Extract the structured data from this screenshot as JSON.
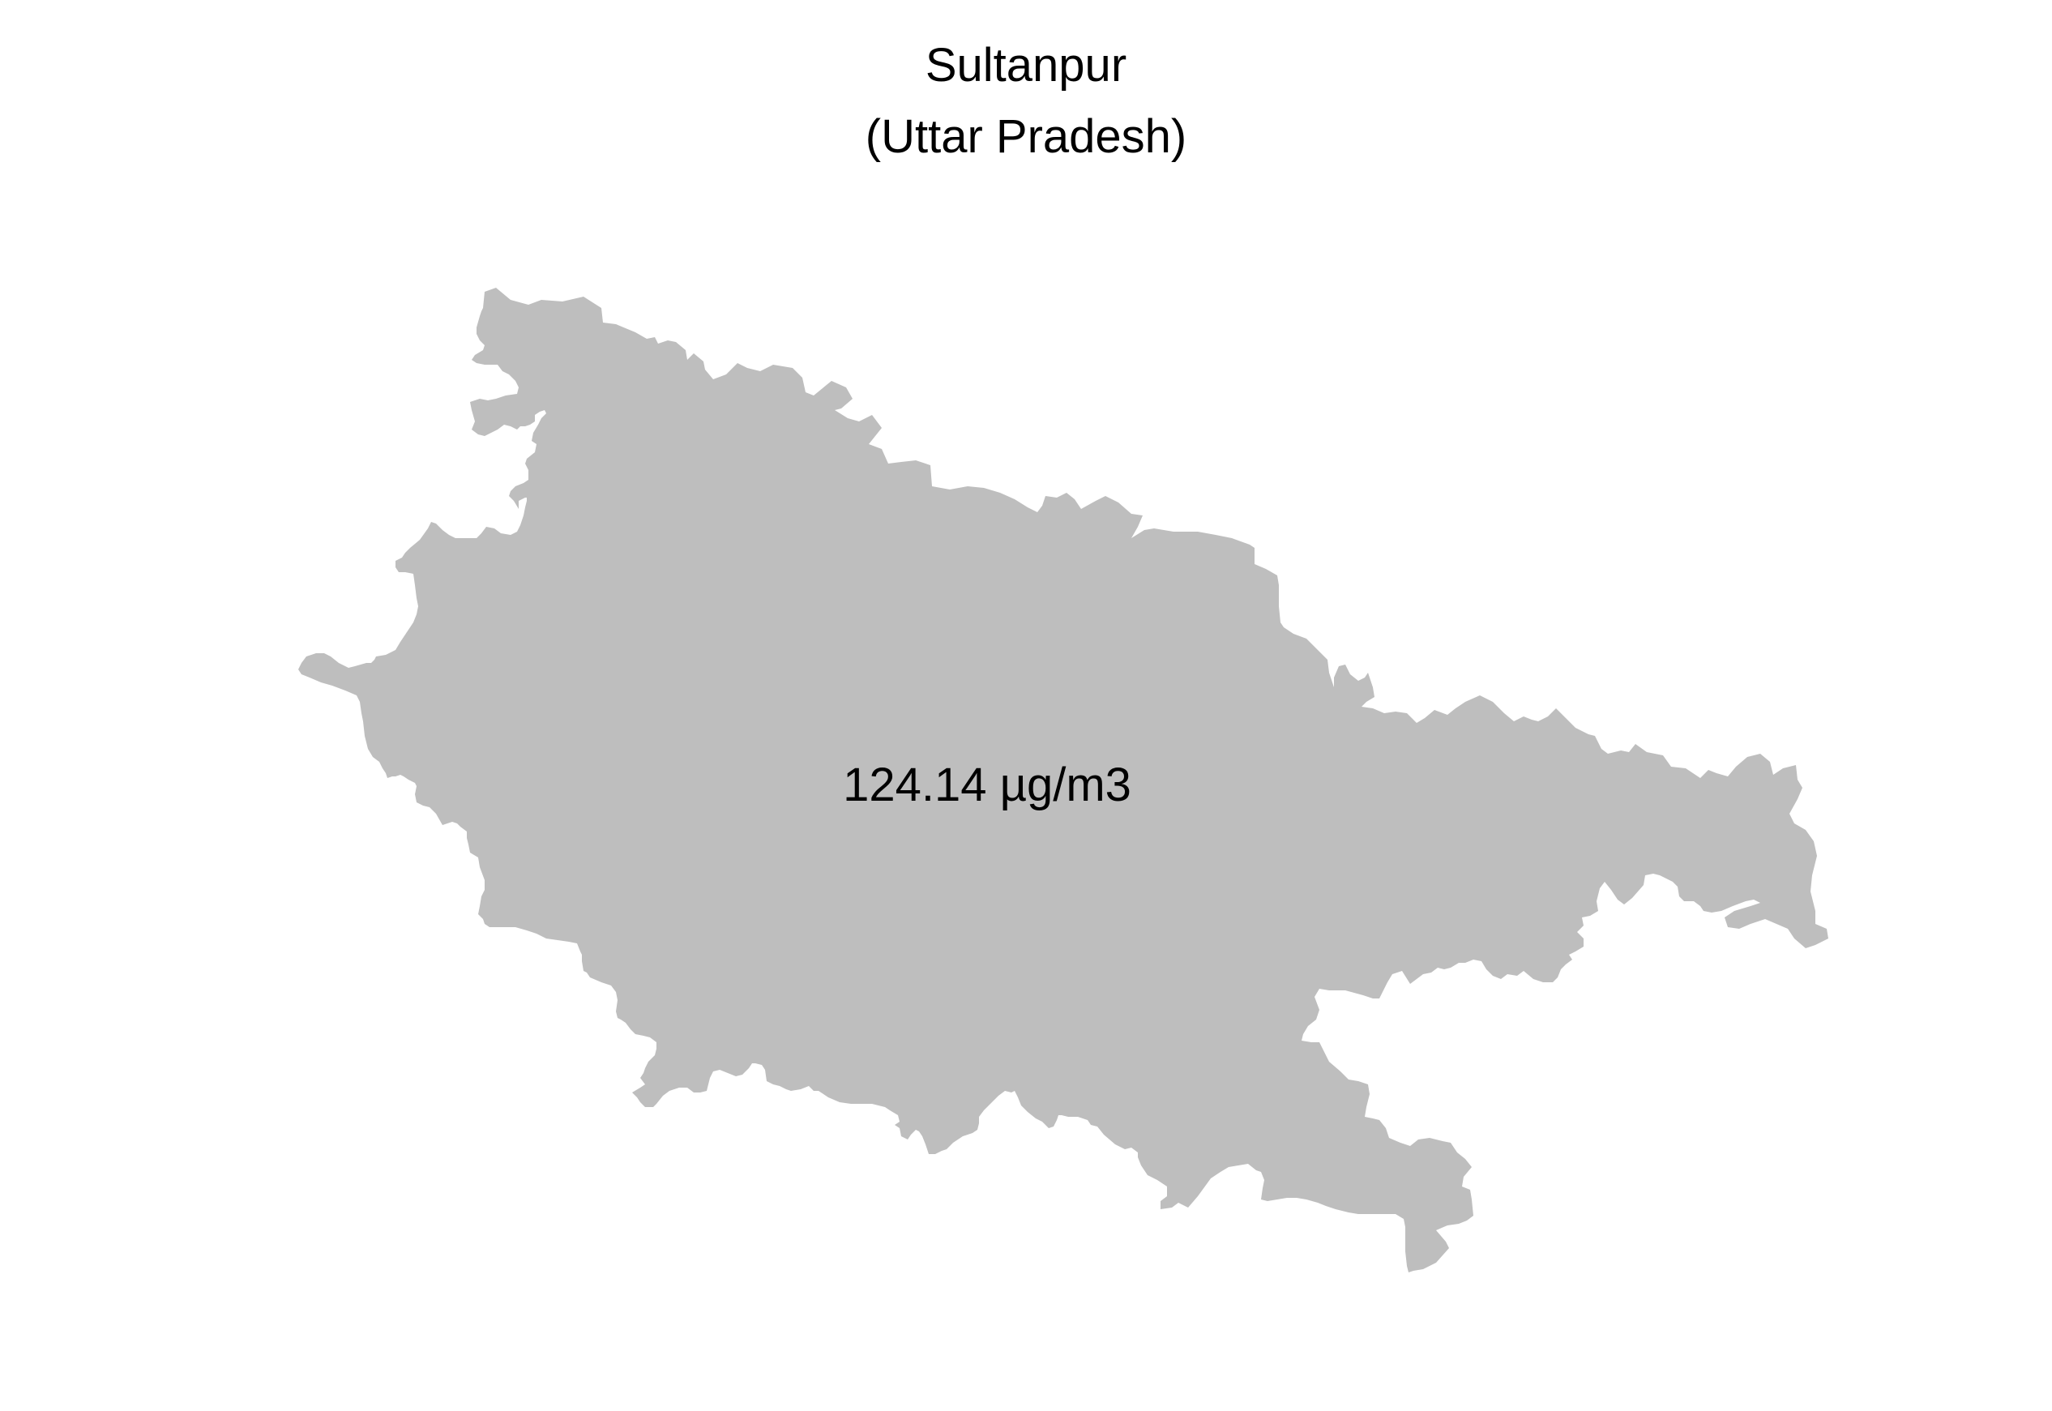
{
  "map": {
    "title_line_1": "Sultanpur",
    "title_line_2": "(Uttar Pradesh)",
    "value_label": "124.14 µg/m3",
    "region_fill": "#bebebe",
    "background": "#ffffff"
  }
}
